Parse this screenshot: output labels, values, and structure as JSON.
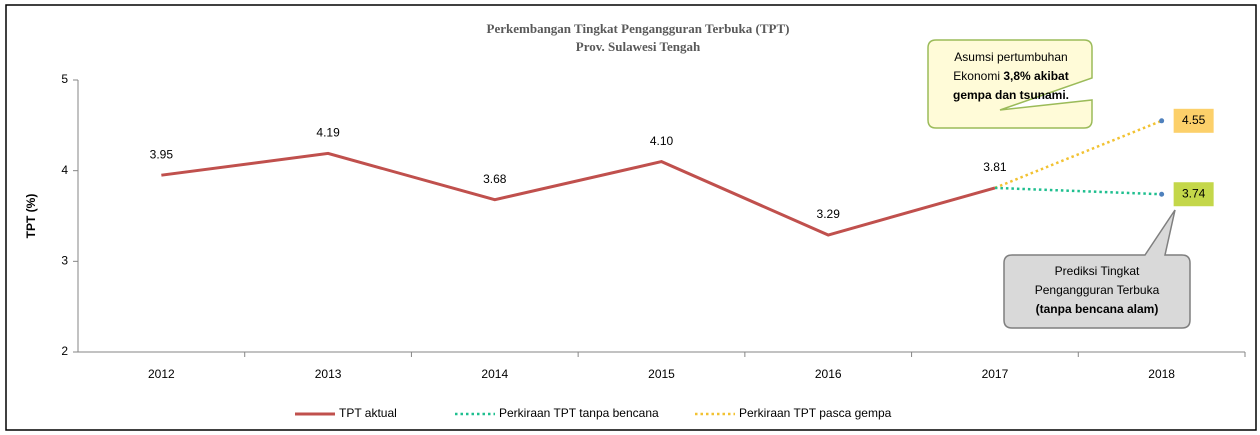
{
  "chart_data": {
    "type": "line",
    "title": "Perkembangan Tingkat Pengangguran Terbuka (TPT)",
    "subtitle": "Prov. Sulawesi Tengah",
    "y_label": "TPT (%)",
    "categories": [
      "2012",
      "2013",
      "2014",
      "2015",
      "2016",
      "2017",
      "2018"
    ],
    "ylim": [
      2,
      5
    ],
    "yticks": [
      2,
      3,
      4,
      5
    ],
    "legend": "bottom",
    "series": [
      {
        "name": "TPT aktual",
        "color": "#c0504d",
        "dash": "solid",
        "values": [
          3.95,
          4.19,
          3.68,
          4.1,
          3.29,
          3.81,
          null
        ],
        "value_labels": [
          "3.95",
          "4.19",
          "3.68",
          "4.10",
          "3.29",
          "3.81",
          null
        ]
      },
      {
        "name": "Perkiraan TPT tanpa bencana",
        "color": "#1fbf8f",
        "dash": "dotted",
        "label_bg": "#c4d74a",
        "values": [
          null,
          null,
          null,
          null,
          null,
          3.81,
          3.74
        ],
        "value_labels": [
          null,
          null,
          null,
          null,
          null,
          null,
          "3.74"
        ]
      },
      {
        "name": "Perkiraan TPT pasca gempa",
        "color": "#f2c232",
        "dash": "dotted",
        "label_bg": "#fcd06a",
        "values": [
          null,
          null,
          null,
          null,
          null,
          3.81,
          4.55
        ],
        "value_labels": [
          null,
          null,
          null,
          null,
          null,
          null,
          "4.55"
        ]
      }
    ],
    "annotations": [
      {
        "lines": [
          [
            {
              "text": "Asumsi pertumbuhan",
              "bold": false
            }
          ],
          [
            {
              "text": "Ekonomi ",
              "bold": false
            },
            {
              "text": "3,8% akibat",
              "bold": true
            }
          ],
          [
            {
              "text": "gempa dan tsunami.",
              "bold": true
            }
          ]
        ]
      },
      {
        "lines": [
          [
            {
              "text": "Prediksi Tingkat",
              "bold": false
            }
          ],
          [
            {
              "text": "Pengangguran Terbuka",
              "bold": false
            }
          ],
          [
            {
              "text": "(tanpa bencana alam)",
              "bold": true
            }
          ]
        ]
      }
    ]
  }
}
